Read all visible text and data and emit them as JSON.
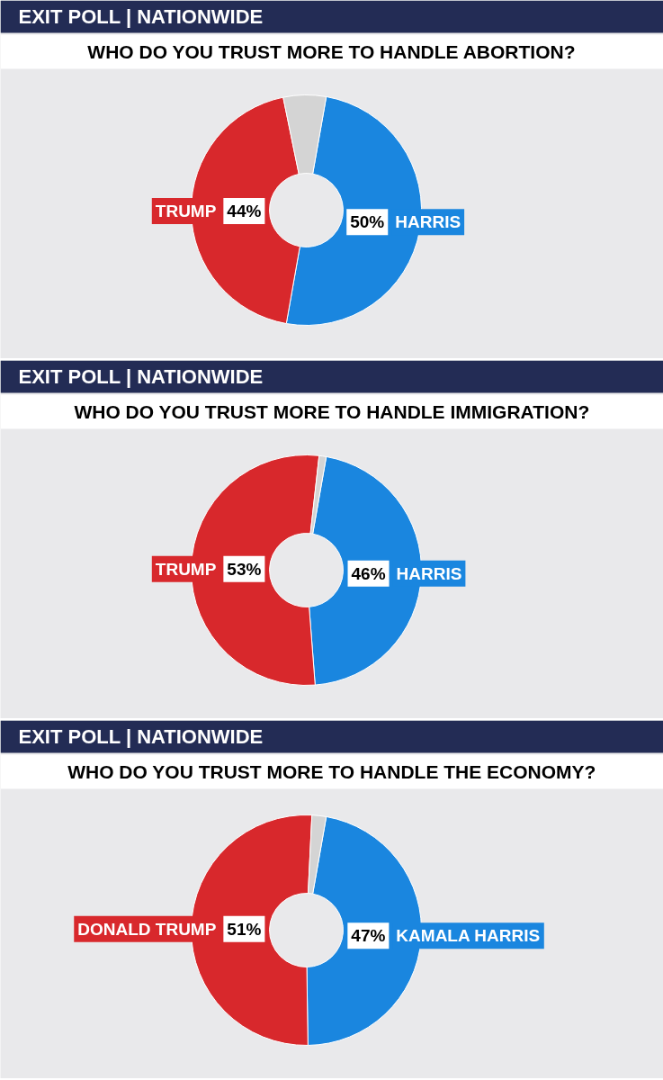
{
  "chart_data": [
    {
      "type": "donut",
      "title": "EXIT POLL | NATIONWIDE",
      "subtitle": "WHO DO YOU TRUST MORE TO HANDLE ABORTION?",
      "categories": [
        "HARRIS",
        "TRUMP",
        null
      ],
      "values": [
        50,
        44,
        6
      ],
      "value_labels": [
        "50%",
        "44%",
        null
      ],
      "colors": [
        "#1a86df",
        "#d8282c",
        "#d4d4d4"
      ]
    },
    {
      "type": "donut",
      "title": "EXIT POLL | NATIONWIDE",
      "subtitle": "WHO DO YOU TRUST MORE TO HANDLE IMMIGRATION?",
      "categories": [
        "HARRIS",
        "TRUMP",
        null
      ],
      "values": [
        46,
        53,
        1
      ],
      "value_labels": [
        "46%",
        "53%",
        null
      ],
      "colors": [
        "#1a86df",
        "#d8282c",
        "#d4d4d4"
      ]
    },
    {
      "type": "donut",
      "title": "EXIT POLL | NATIONWIDE",
      "subtitle": "WHO DO YOU TRUST MORE TO HANDLE THE ECONOMY?",
      "categories": [
        "KAMALA HARRIS",
        "DONALD TRUMP",
        null
      ],
      "values": [
        47,
        51,
        2
      ],
      "value_labels": [
        "47%",
        "51%",
        null
      ],
      "colors": [
        "#1a86df",
        "#d8282c",
        "#d4d4d4"
      ]
    }
  ]
}
